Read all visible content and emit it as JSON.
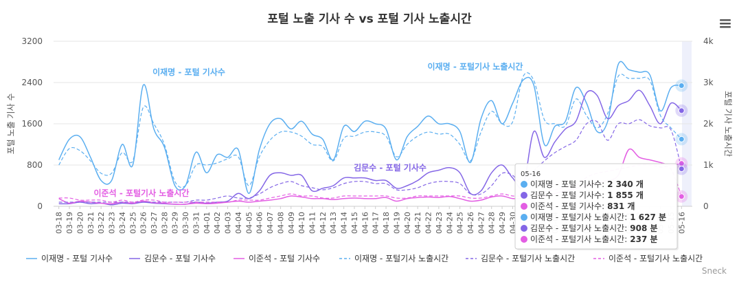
{
  "colors": {
    "lee_jm": "#5aaef0",
    "kim_ms": "#8466e6",
    "lee_js": "#e35ee3",
    "grid": "#e6e6e6",
    "menu": "#555555"
  },
  "menu_icon": "hamburger-menu-icon",
  "credit": "Sneck",
  "chart_data": {
    "type": "line",
    "title": "포털 노출 기사 수 vs 포털 기사 노출시간",
    "ylabel_left": "포털 노출 기사 수",
    "ylabel_right": "포털 기사 노출시간",
    "ylim_left": [
      0,
      3200
    ],
    "yticks_left": [
      {
        "v": 0,
        "label": "0"
      },
      {
        "v": 800,
        "label": "800"
      },
      {
        "v": 1600,
        "label": "1600"
      },
      {
        "v": 2400,
        "label": "2400"
      },
      {
        "v": 3200,
        "label": "3200"
      }
    ],
    "ylim_right": [
      0,
      4000
    ],
    "yticks_right": [
      {
        "v": 0,
        "label": "0"
      },
      {
        "v": 1000,
        "label": "1k"
      },
      {
        "v": 2000,
        "label": "2k"
      },
      {
        "v": 3000,
        "label": "3k"
      },
      {
        "v": 4000,
        "label": "4k"
      }
    ],
    "categories": [
      "03-18",
      "03-19",
      "03-20",
      "03-21",
      "03-22",
      "03-23",
      "03-24",
      "03-25",
      "03-26",
      "03-27",
      "03-28",
      "03-29",
      "03-30",
      "03-31",
      "04-01",
      "04-02",
      "04-03",
      "04-04",
      "04-05",
      "04-06",
      "04-07",
      "04-08",
      "04-09",
      "04-10",
      "04-11",
      "04-12",
      "04-13",
      "04-14",
      "04-15",
      "04-16",
      "04-17",
      "04-18",
      "04-19",
      "04-20",
      "04-21",
      "04-22",
      "04-23",
      "04-24",
      "04-25",
      "04-26",
      "04-27",
      "04-28",
      "04-29",
      "04-30",
      "05-01",
      "05-02",
      "05-03",
      "05-04",
      "05-05",
      "05-06",
      "05-07",
      "05-08",
      "05-09",
      "05-10",
      "05-11",
      "05-12",
      "05-13",
      "05-14",
      "05-15",
      "05-16"
    ],
    "series": [
      {
        "name": "이재명 - 포털 기사수",
        "axis": "left",
        "dash": false,
        "color_key": "lee_jm",
        "values": [
          900,
          1300,
          1350,
          950,
          500,
          500,
          1200,
          800,
          2350,
          1500,
          1150,
          400,
          400,
          1050,
          650,
          1000,
          950,
          1100,
          250,
          1100,
          1600,
          1700,
          1500,
          1650,
          1400,
          1300,
          900,
          1550,
          1450,
          1650,
          1600,
          1500,
          900,
          1350,
          1550,
          1750,
          1600,
          1600,
          1450,
          850,
          1700,
          2050,
          1600,
          2000,
          2450,
          2350,
          1200,
          1550,
          1650,
          2300,
          2000,
          1450,
          1650,
          2750,
          2650,
          2600,
          2550,
          1850,
          2300,
          2340
        ]
      },
      {
        "name": "김문수 - 포털 기사수",
        "axis": "left",
        "dash": false,
        "color_key": "kim_ms",
        "values": [
          50,
          50,
          80,
          50,
          60,
          30,
          60,
          50,
          80,
          60,
          50,
          40,
          40,
          80,
          60,
          80,
          100,
          250,
          150,
          300,
          600,
          650,
          600,
          600,
          300,
          350,
          400,
          550,
          550,
          550,
          500,
          500,
          350,
          400,
          500,
          650,
          700,
          750,
          650,
          250,
          300,
          650,
          800,
          550,
          400,
          1450,
          950,
          1250,
          1500,
          1650,
          2200,
          2150,
          1700,
          1950,
          2050,
          2250,
          1950,
          1600,
          2000,
          1855
        ]
      },
      {
        "name": "이준석 - 포털 기사수",
        "axis": "left",
        "dash": false,
        "color_key": "lee_js",
        "values": [
          150,
          60,
          100,
          80,
          60,
          50,
          80,
          60,
          100,
          70,
          60,
          40,
          40,
          60,
          50,
          60,
          80,
          100,
          80,
          100,
          120,
          150,
          200,
          180,
          150,
          150,
          130,
          150,
          160,
          150,
          150,
          170,
          100,
          150,
          170,
          180,
          170,
          190,
          150,
          100,
          120,
          180,
          200,
          150,
          150,
          150,
          200,
          250,
          300,
          350,
          400,
          450,
          500,
          600,
          1100,
          950,
          900,
          850,
          800,
          831
        ]
      },
      {
        "name": "이재명 - 포털기사 노출시간",
        "axis": "right",
        "dash": true,
        "color_key": "lee_jm",
        "values": [
          1000,
          1400,
          1350,
          1100,
          800,
          800,
          1300,
          1100,
          2400,
          2000,
          1500,
          600,
          500,
          1000,
          1000,
          1050,
          1150,
          1200,
          500,
          1200,
          1600,
          1800,
          1800,
          1700,
          1500,
          1450,
          1100,
          1650,
          1700,
          1800,
          1800,
          1700,
          1200,
          1500,
          1700,
          1800,
          1750,
          1750,
          1500,
          1100,
          1800,
          2300,
          2000,
          2050,
          3150,
          3050,
          2100,
          2000,
          1950,
          2600,
          2200,
          1900,
          2250,
          3150,
          3100,
          3100,
          3050,
          2200,
          1900,
          1627
        ]
      },
      {
        "name": "김문수 - 포털기사 노출시간",
        "axis": "right",
        "dash": true,
        "color_key": "kim_ms",
        "values": [
          100,
          100,
          100,
          100,
          100,
          100,
          100,
          100,
          100,
          100,
          100,
          100,
          100,
          150,
          150,
          200,
          250,
          200,
          200,
          300,
          450,
          550,
          600,
          500,
          450,
          400,
          450,
          550,
          600,
          600,
          550,
          550,
          400,
          400,
          450,
          550,
          600,
          600,
          550,
          300,
          300,
          500,
          800,
          750,
          500,
          850,
          1100,
          1300,
          1450,
          1600,
          2000,
          2050,
          1600,
          2000,
          2000,
          2100,
          1950,
          1900,
          1850,
          908
        ]
      },
      {
        "name": "이준석 - 포털기사 노출시간",
        "axis": "right",
        "dash": true,
        "color_key": "lee_js",
        "values": [
          200,
          200,
          150,
          150,
          150,
          100,
          150,
          100,
          150,
          150,
          100,
          100,
          100,
          100,
          100,
          100,
          100,
          150,
          150,
          150,
          200,
          250,
          300,
          250,
          250,
          200,
          200,
          250,
          250,
          250,
          250,
          250,
          200,
          200,
          250,
          250,
          250,
          250,
          250,
          200,
          200,
          250,
          300,
          250,
          250,
          300,
          350,
          400,
          450,
          500,
          700,
          800,
          850,
          900,
          950,
          1000,
          1000,
          950,
          900,
          237
        ]
      }
    ],
    "annotations": [
      {
        "text": "이재명 - 포털 기사수",
        "color_key": "lee_jm"
      },
      {
        "text": "이재명 - 포털기사 노출시간",
        "color_key": "lee_jm"
      },
      {
        "text": "김문수 - 포털 기사수",
        "color_key": "kim_ms"
      },
      {
        "text": "이준석 - 포털기사 노출시간",
        "color_key": "lee_js"
      }
    ],
    "legend": [
      {
        "label": "이재명 - 포털 기사수",
        "color_key": "lee_jm",
        "dash": false
      },
      {
        "label": "김문수 - 포털 기사수",
        "color_key": "kim_ms",
        "dash": false
      },
      {
        "label": "이준석 - 포털 기사수",
        "color_key": "lee_js",
        "dash": false
      },
      {
        "label": "이재명 - 포털기사 노출시간",
        "color_key": "lee_jm",
        "dash": true
      },
      {
        "label": "김문수 - 포털기사 노출시간",
        "color_key": "kim_ms",
        "dash": true
      },
      {
        "label": "이준석 - 포털기사 노출시간",
        "color_key": "lee_js",
        "dash": true
      }
    ],
    "tooltip": {
      "date": "05-16",
      "rows": [
        {
          "label": "이재명 - 포털 기사수:",
          "value": "2 340 개",
          "color_key": "lee_jm"
        },
        {
          "label": "김문수 - 포털 기사수:",
          "value": "1 855 개",
          "color_key": "kim_ms"
        },
        {
          "label": "이준석 - 포털 기사수:",
          "value": "831 개",
          "color_key": "lee_js"
        },
        {
          "label": "이재명 - 포털기사 노출시간:",
          "value": "1 627 분",
          "color_key": "lee_jm"
        },
        {
          "label": "김문수 - 포털기사 노출시간:",
          "value": "908 분",
          "color_key": "kim_ms"
        },
        {
          "label": "이준석 - 포털기사 노출시간:",
          "value": "237 분",
          "color_key": "lee_js"
        }
      ]
    }
  }
}
